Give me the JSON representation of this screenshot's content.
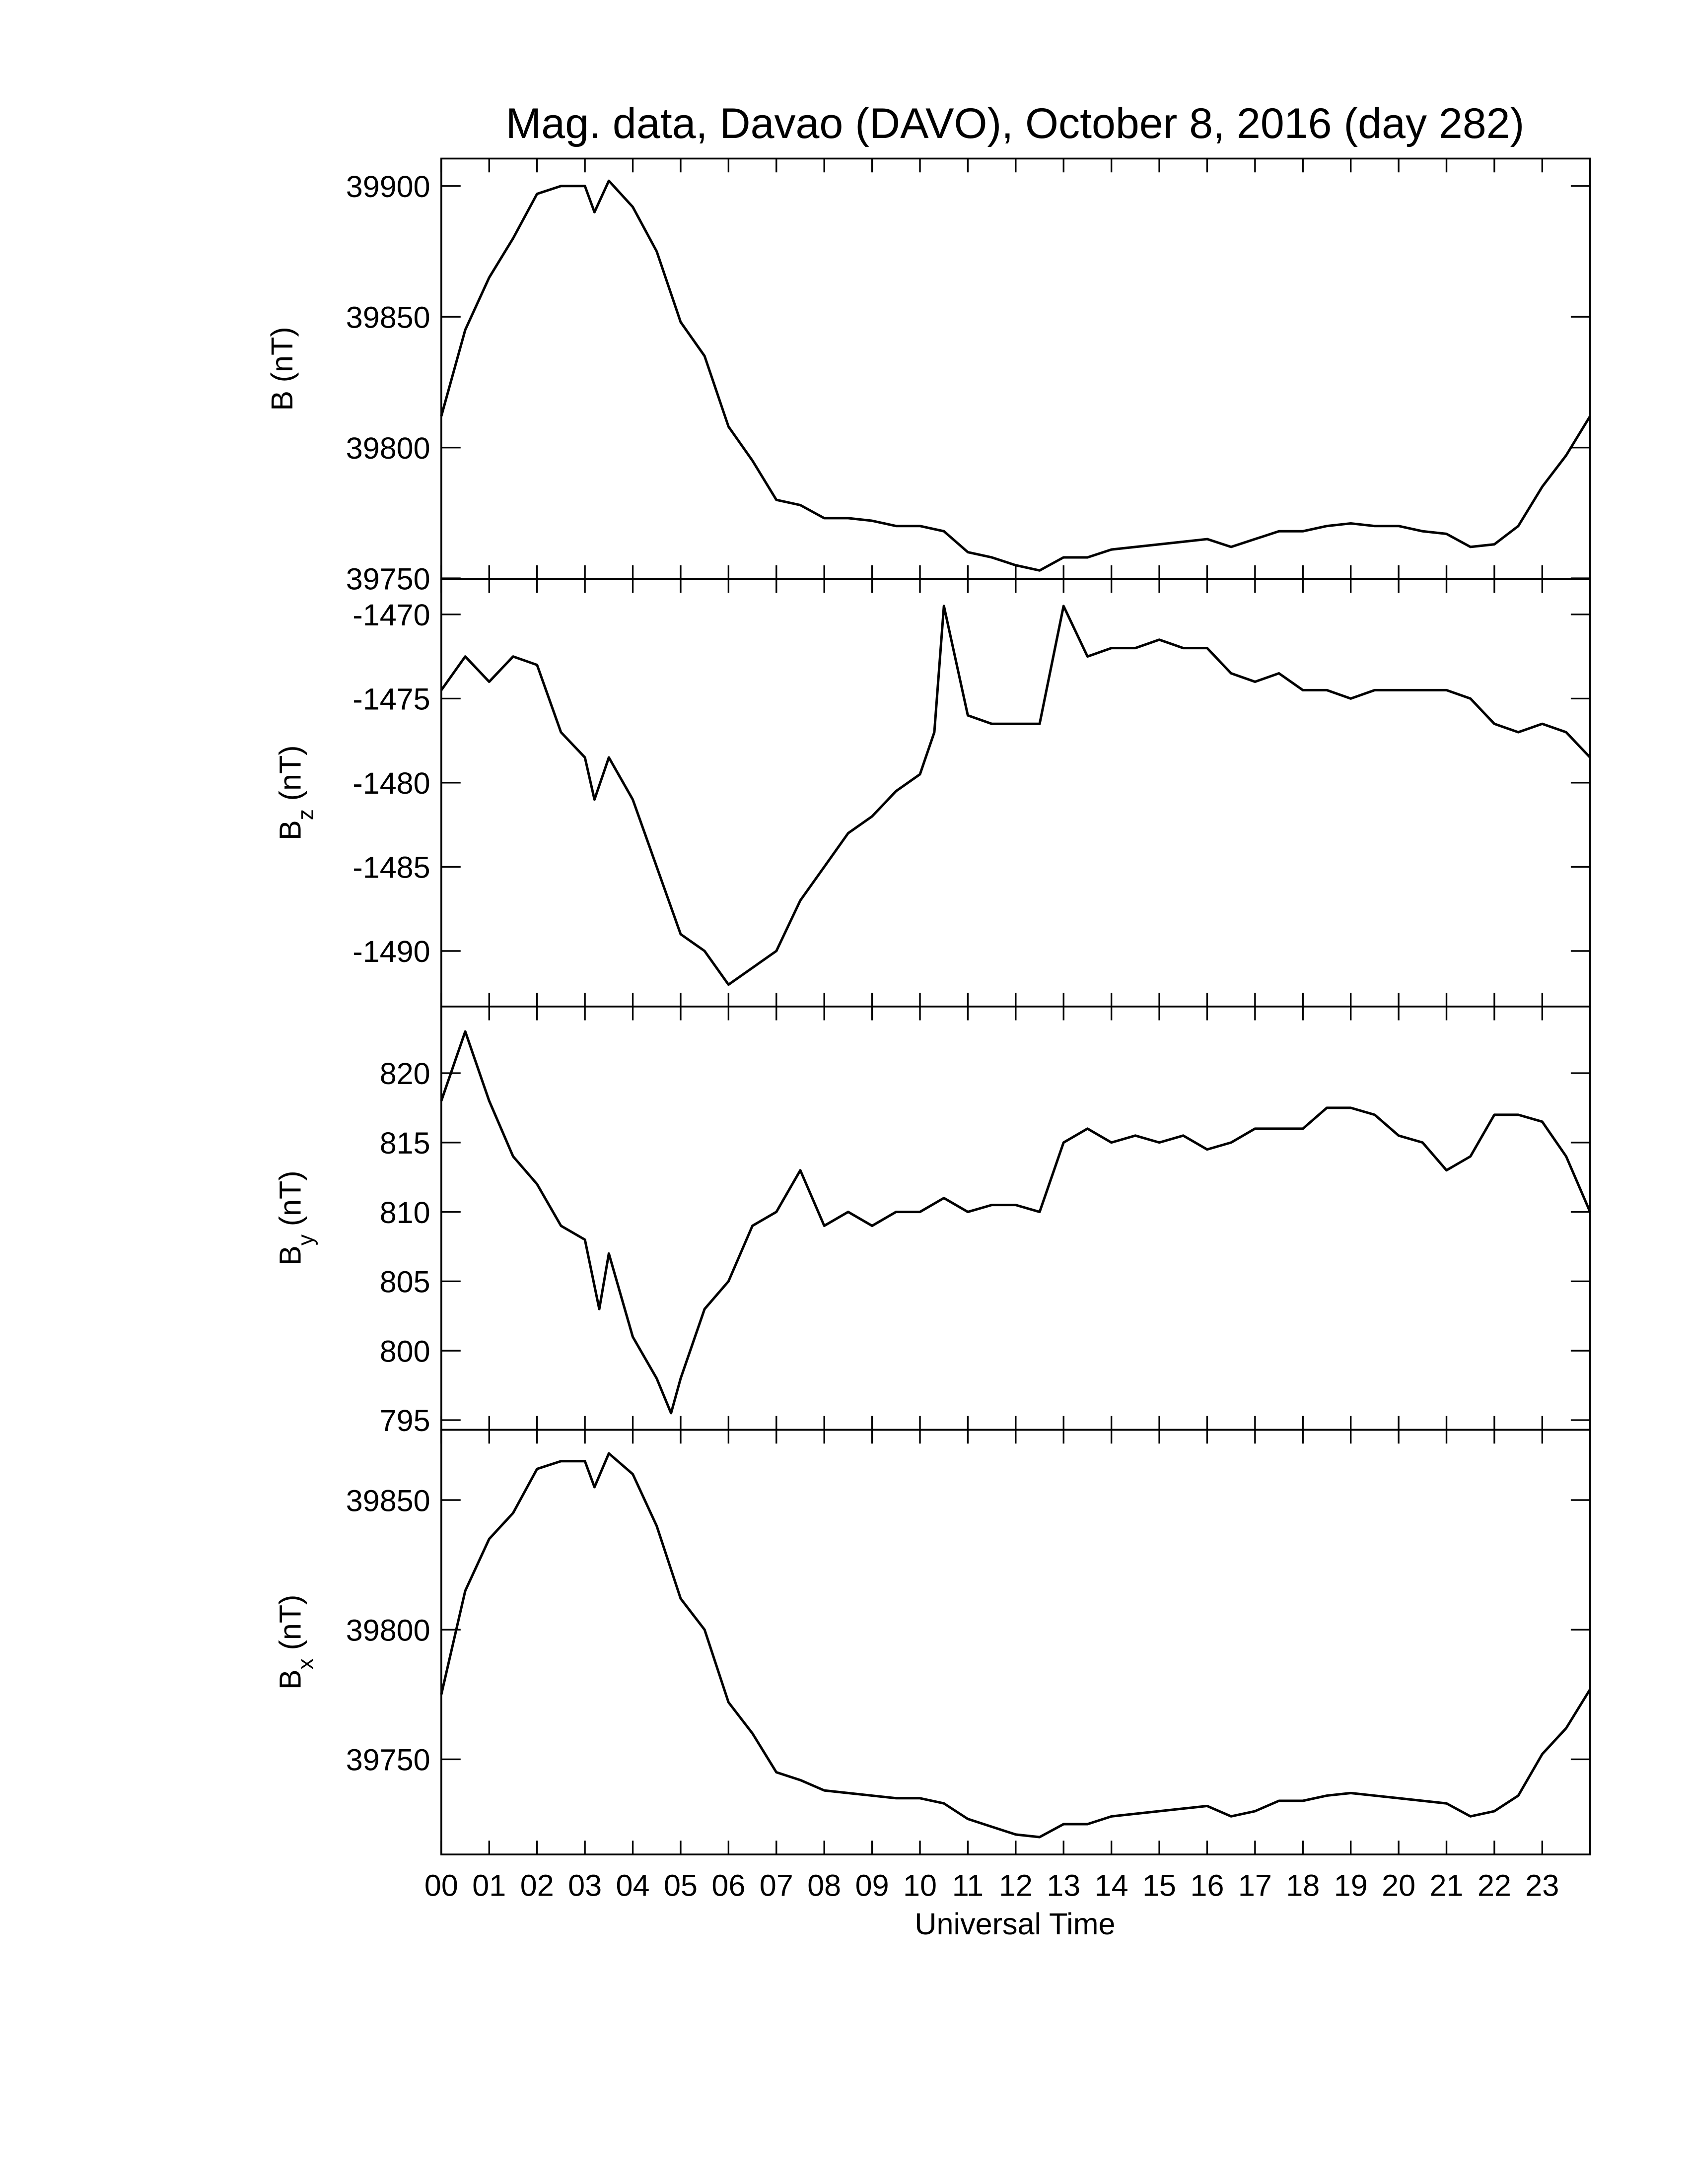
{
  "chart_data": [
    {
      "type": "line",
      "title": "Mag. data, Davao (DAVO), October 8, 2016 (day 282)",
      "ylabel": "B",
      "ylabel_unit": "(nT)",
      "x": [
        0,
        0.5,
        1,
        1.5,
        2,
        2.5,
        3,
        3.2,
        3.5,
        4,
        4.5,
        5,
        5.5,
        6,
        6.5,
        7,
        7.5,
        8,
        8.5,
        9,
        9.5,
        10,
        10.5,
        11,
        11.5,
        12,
        12.5,
        13,
        13.5,
        14,
        14.5,
        15,
        15.5,
        16,
        16.5,
        17,
        17.5,
        18,
        18.5,
        19,
        19.5,
        20,
        20.5,
        21,
        21.5,
        22,
        22.5,
        23,
        23.5,
        24
      ],
      "values": [
        39812,
        39845,
        39865,
        39880,
        39897,
        39900,
        39900,
        39890,
        39902,
        39892,
        39875,
        39848,
        39835,
        39808,
        39795,
        39780,
        39778,
        39773,
        39773,
        39772,
        39770,
        39770,
        39768,
        39760,
        39758,
        39755,
        39753,
        39758,
        39758,
        39761,
        39762,
        39763,
        39764,
        39765,
        39762,
        39765,
        39768,
        39768,
        39770,
        39771,
        39770,
        39770,
        39768,
        39767,
        39762,
        39763,
        39770,
        39785,
        39797,
        39812
      ],
      "color": "#000000",
      "xlim": [
        0,
        24
      ],
      "ylim": [
        39749.7,
        39910.5
      ],
      "yticks": [
        39750,
        39800,
        39850,
        39900
      ]
    },
    {
      "type": "line",
      "ylabel": "B",
      "ylabel_sub": "z",
      "ylabel_unit": "(nT)",
      "x": [
        0,
        0.5,
        1,
        1.5,
        2,
        2.5,
        3,
        3.2,
        3.5,
        4,
        4.5,
        5,
        5.5,
        6,
        6.5,
        7,
        7.5,
        8,
        8.5,
        9,
        9.5,
        10,
        10.3,
        10.5,
        11,
        11.5,
        12,
        12.5,
        13,
        13.5,
        14,
        14.5,
        15,
        15.5,
        16,
        16.5,
        17,
        17.5,
        18,
        18.5,
        19,
        19.5,
        20,
        20.5,
        21,
        21.5,
        22,
        22.5,
        23,
        23.5,
        24
      ],
      "values": [
        -1474.5,
        -1472.5,
        -1474,
        -1472.5,
        -1473,
        -1477,
        -1478.5,
        -1481,
        -1478.5,
        -1481,
        -1485,
        -1489,
        -1490,
        -1492,
        -1491,
        -1490,
        -1487,
        -1485,
        -1483,
        -1482,
        -1480.5,
        -1479.5,
        -1477,
        -1469.5,
        -1476,
        -1476.5,
        -1476.5,
        -1476.5,
        -1469.5,
        -1472.5,
        -1472,
        -1472,
        -1471.5,
        -1472,
        -1472,
        -1473.5,
        -1474,
        -1473.5,
        -1474.5,
        -1474.5,
        -1475,
        -1474.5,
        -1474.5,
        -1474.5,
        -1474.5,
        -1475,
        -1476.5,
        -1477,
        -1476.5,
        -1477,
        -1478.5
      ],
      "color": "#000000",
      "xlim": [
        0,
        24
      ],
      "ylim": [
        -1493.3,
        -1467.9
      ],
      "yticks": [
        -1490,
        -1485,
        -1480,
        -1475,
        -1470
      ]
    },
    {
      "type": "line",
      "ylabel": "B",
      "ylabel_sub": "y",
      "ylabel_unit": "(nT)",
      "x": [
        0,
        0.5,
        1,
        1.5,
        2,
        2.5,
        3,
        3.3,
        3.5,
        4,
        4.5,
        4.8,
        5,
        5.5,
        6,
        6.5,
        7,
        7.5,
        8,
        8.5,
        9,
        9.5,
        10,
        10.5,
        11,
        11.5,
        12,
        12.5,
        13,
        13.5,
        14,
        14.5,
        15,
        15.5,
        16,
        16.5,
        17,
        17.5,
        18,
        18.5,
        19,
        19.5,
        20,
        20.5,
        21,
        21.5,
        22,
        22.5,
        23,
        23.5,
        24
      ],
      "values": [
        818,
        823,
        818,
        814,
        812,
        809,
        808,
        803,
        807,
        801,
        798,
        795.5,
        798,
        803,
        805,
        809,
        810,
        813,
        809,
        810,
        809,
        810,
        810,
        811,
        810,
        810.5,
        810.5,
        810,
        815,
        816,
        815,
        815.5,
        815,
        815.5,
        814.5,
        815,
        816,
        816,
        816,
        817.5,
        817.5,
        817,
        815.5,
        815,
        813,
        814,
        817,
        817,
        816.5,
        814,
        810
      ],
      "color": "#000000",
      "xlim": [
        0,
        24
      ],
      "ylim": [
        794.3,
        824.8
      ],
      "yticks": [
        795,
        800,
        805,
        810,
        815,
        820
      ]
    },
    {
      "type": "line",
      "ylabel": "B",
      "ylabel_sub": "x",
      "ylabel_unit": "(nT)",
      "xlabel": "Universal Time",
      "x": [
        0,
        0.5,
        1,
        1.5,
        2,
        2.5,
        3,
        3.2,
        3.5,
        4,
        4.5,
        5,
        5.5,
        6,
        6.5,
        7,
        7.5,
        8,
        8.5,
        9,
        9.5,
        10,
        10.5,
        11,
        11.5,
        12,
        12.5,
        13,
        13.5,
        14,
        14.5,
        15,
        15.5,
        16,
        16.5,
        17,
        17.5,
        18,
        18.5,
        19,
        19.5,
        20,
        20.5,
        21,
        21.5,
        22,
        22.5,
        23,
        23.5,
        24
      ],
      "values": [
        39775,
        39815,
        39835,
        39845,
        39862,
        39865,
        39865,
        39855,
        39868,
        39860,
        39840,
        39812,
        39800,
        39772,
        39760,
        39745,
        39742,
        39738,
        39737,
        39736,
        39735,
        39735,
        39733,
        39727,
        39724,
        39721,
        39720,
        39725,
        39725,
        39728,
        39729,
        39730,
        39731,
        39732,
        39728,
        39730,
        39734,
        39734,
        39736,
        39737,
        39736,
        39735,
        39734,
        39733,
        39728,
        39730,
        39736,
        39752,
        39762,
        39777
      ],
      "color": "#000000",
      "xlim": [
        0,
        24
      ],
      "ylim": [
        39713.3,
        39877.1
      ],
      "yticks": [
        39750,
        39800,
        39850
      ],
      "xticks": [
        {
          "value": 0,
          "label": "00"
        },
        {
          "value": 1,
          "label": "01"
        },
        {
          "value": 2,
          "label": "02"
        },
        {
          "value": 3,
          "label": "03"
        },
        {
          "value": 4,
          "label": "04"
        },
        {
          "value": 5,
          "label": "05"
        },
        {
          "value": 6,
          "label": "06"
        },
        {
          "value": 7,
          "label": "07"
        },
        {
          "value": 8,
          "label": "08"
        },
        {
          "value": 9,
          "label": "09"
        },
        10,
        11,
        12,
        13,
        14,
        15,
        16,
        17,
        18,
        19,
        20,
        21,
        22,
        23
      ]
    }
  ]
}
